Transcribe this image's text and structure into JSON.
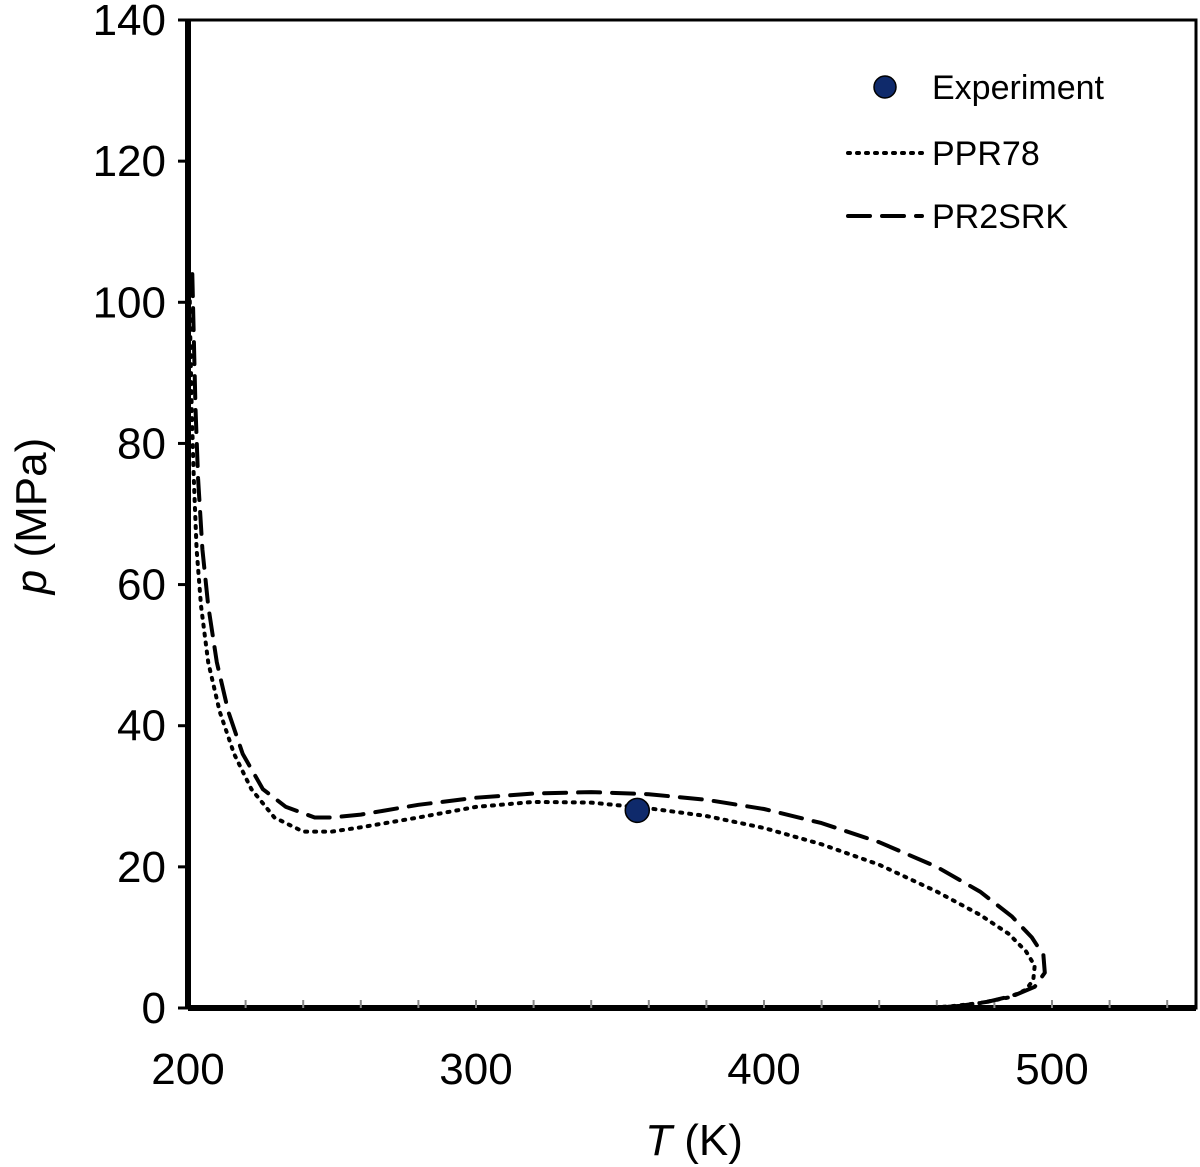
{
  "chart_data": {
    "type": "line",
    "xlabel": {
      "symbol": "T",
      "unit": " (K)"
    },
    "ylabel": {
      "symbol": "p",
      "unit": " (MPa)"
    },
    "xlim": [
      200,
      550
    ],
    "ylim": [
      0,
      140
    ],
    "x_ticks": [
      200,
      300,
      400,
      500
    ],
    "x_tick_labels": [
      "200",
      "300",
      "400",
      "500"
    ],
    "x_minor_step": 20,
    "y_ticks": [
      0,
      20,
      40,
      60,
      80,
      100,
      120,
      140
    ],
    "y_tick_labels": [
      "0",
      "20",
      "40",
      "60",
      "80",
      "100",
      "120",
      "140"
    ],
    "grid": false,
    "legend_position": "top-right",
    "series": [
      {
        "name": "Experiment",
        "style": "marker",
        "color": "#0f2a6b",
        "points": [
          [
            356,
            28
          ]
        ]
      },
      {
        "name": "PPR78",
        "style": "dotted",
        "color": "#000000",
        "points": [
          [
            200.5,
            104
          ],
          [
            200.8,
            95
          ],
          [
            201.3,
            85
          ],
          [
            202,
            75
          ],
          [
            203,
            65
          ],
          [
            204.5,
            57
          ],
          [
            207,
            49
          ],
          [
            211,
            42
          ],
          [
            216,
            36
          ],
          [
            222,
            31
          ],
          [
            230,
            27
          ],
          [
            240,
            25
          ],
          [
            250,
            25
          ],
          [
            260,
            25.6
          ],
          [
            280,
            27
          ],
          [
            300,
            28.5
          ],
          [
            320,
            29.2
          ],
          [
            340,
            29.1
          ],
          [
            360,
            28.3
          ],
          [
            380,
            27.2
          ],
          [
            400,
            25.5
          ],
          [
            420,
            23.2
          ],
          [
            440,
            20.3
          ],
          [
            460,
            16.5
          ],
          [
            475,
            13.2
          ],
          [
            485,
            10.5
          ],
          [
            491,
            8
          ],
          [
            494,
            6
          ],
          [
            493.5,
            4
          ],
          [
            491,
            2.6
          ],
          [
            485,
            1.5
          ],
          [
            475,
            0.7
          ],
          [
            465,
            0.25
          ],
          [
            458,
            0.05
          ]
        ]
      },
      {
        "name": "PR2SRK",
        "style": "dashed",
        "color": "#000000",
        "points": [
          [
            201.5,
            104
          ],
          [
            202,
            95
          ],
          [
            202.6,
            85
          ],
          [
            203.5,
            75
          ],
          [
            205,
            65
          ],
          [
            207,
            57
          ],
          [
            210,
            49
          ],
          [
            214,
            42
          ],
          [
            219,
            36
          ],
          [
            226,
            31
          ],
          [
            234,
            28.5
          ],
          [
            244,
            27
          ],
          [
            250,
            27
          ],
          [
            260,
            27.4
          ],
          [
            280,
            28.8
          ],
          [
            300,
            29.8
          ],
          [
            320,
            30.4
          ],
          [
            340,
            30.6
          ],
          [
            360,
            30.3
          ],
          [
            380,
            29.5
          ],
          [
            400,
            28.2
          ],
          [
            420,
            26.2
          ],
          [
            440,
            23.5
          ],
          [
            460,
            20
          ],
          [
            475,
            16.5
          ],
          [
            486,
            13
          ],
          [
            493,
            10
          ],
          [
            497,
            7.5
          ],
          [
            497.5,
            5
          ],
          [
            494,
            3
          ],
          [
            487,
            1.8
          ],
          [
            478,
            0.9
          ],
          [
            468,
            0.3
          ],
          [
            460,
            0.05
          ]
        ]
      }
    ]
  }
}
